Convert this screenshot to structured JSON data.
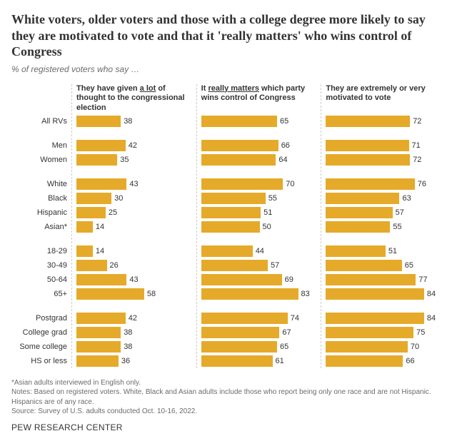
{
  "title": "White voters, older voters and those with a college degree more likely to say they are motivated to vote and that it 'really matters' who wins control of Congress",
  "subtitle": "% of registered voters who say …",
  "panels": [
    {
      "key": "thought",
      "header_pre": "They have given ",
      "header_u": "a lot",
      "header_post": " of thought to the congressional election"
    },
    {
      "key": "matters",
      "header_pre": "It ",
      "header_u": "really matters",
      "header_post": " which party wins control of Congress"
    },
    {
      "key": "motivated",
      "header_pre": "",
      "header_u": "",
      "header_post": "They are extremely or very motivated to vote"
    }
  ],
  "groups": [
    {
      "rows": [
        {
          "label": "All RVs",
          "thought": 38,
          "matters": 65,
          "motivated": 72
        }
      ]
    },
    {
      "rows": [
        {
          "label": "Men",
          "thought": 42,
          "matters": 66,
          "motivated": 71
        },
        {
          "label": "Women",
          "thought": 35,
          "matters": 64,
          "motivated": 72
        }
      ]
    },
    {
      "rows": [
        {
          "label": "White",
          "thought": 43,
          "matters": 70,
          "motivated": 76
        },
        {
          "label": "Black",
          "thought": 30,
          "matters": 55,
          "motivated": 63
        },
        {
          "label": "Hispanic",
          "thought": 25,
          "matters": 51,
          "motivated": 57
        },
        {
          "label": "Asian*",
          "thought": 14,
          "matters": 50,
          "motivated": 55
        }
      ]
    },
    {
      "rows": [
        {
          "label": "18-29",
          "thought": 14,
          "matters": 44,
          "motivated": 51
        },
        {
          "label": "30-49",
          "thought": 26,
          "matters": 57,
          "motivated": 65
        },
        {
          "label": "50-64",
          "thought": 43,
          "matters": 69,
          "motivated": 77
        },
        {
          "label": "65+",
          "thought": 58,
          "matters": 83,
          "motivated": 84
        }
      ]
    },
    {
      "rows": [
        {
          "label": "Postgrad",
          "thought": 42,
          "matters": 74,
          "motivated": 84
        },
        {
          "label": "College grad",
          "thought": 38,
          "matters": 67,
          "motivated": 75
        },
        {
          "label": "Some college",
          "thought": 38,
          "matters": 65,
          "motivated": 70
        },
        {
          "label": "HS or less",
          "thought": 36,
          "matters": 61,
          "motivated": 66
        }
      ]
    }
  ],
  "style": {
    "bar_color": "#e5aa29",
    "scale_max": 100,
    "background": "#ffffff",
    "label_fontsize": 11,
    "header_fontsize": 11,
    "title_fontsize": 18
  },
  "notes": [
    "*Asian adults interviewed in English only.",
    "Notes: Based on registered voters. White, Black and Asian adults include those who report being only one race and are not Hispanic. Hispanics are of any race.",
    "Source: Survey of U.S. adults conducted Oct. 10-16, 2022."
  ],
  "footer": "PEW RESEARCH CENTER"
}
